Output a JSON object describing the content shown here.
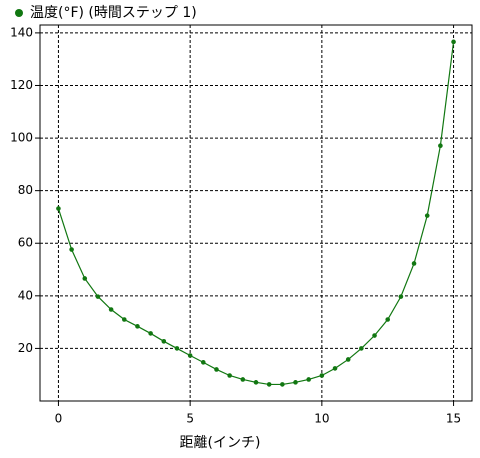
{
  "chart_data": {
    "type": "line",
    "x_label": "距離(インチ)",
    "x": [
      0,
      0.5,
      1,
      1.5,
      2,
      2.5,
      3,
      3.5,
      4,
      4.5,
      5,
      5.5,
      6,
      6.5,
      7,
      7.5,
      8,
      8.5,
      9,
      9.5,
      10,
      10.5,
      11,
      11.5,
      12,
      12.5,
      13,
      13.5,
      14,
      14.5,
      15
    ],
    "series": [
      {
        "name": "温度(°F)  (時間ステップ 1)",
        "color": "#117711",
        "values": [
          73.2,
          57.6,
          46.6,
          39.7,
          34.8,
          31,
          28.4,
          25.7,
          22.7,
          20,
          17.3,
          14.7,
          12,
          9.7,
          8.2,
          7.1,
          6.3,
          6.3,
          7.1,
          8.2,
          9.7,
          12.4,
          15.8,
          20,
          24.9,
          31,
          39.7,
          52.3,
          70.5,
          97.1,
          136.6
        ]
      }
    ],
    "xlim": [
      -0.7,
      15.7
    ],
    "ylim": [
      0,
      143
    ],
    "xticks": [
      0,
      5,
      10,
      15
    ],
    "yticks": [
      20,
      40,
      60,
      80,
      100,
      120,
      140
    ],
    "grid": true,
    "legend": "top-left"
  }
}
